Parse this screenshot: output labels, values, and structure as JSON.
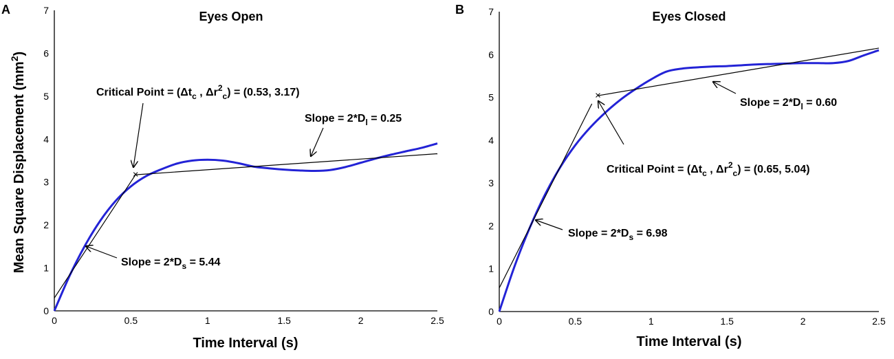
{
  "chart_data": [
    {
      "type": "line",
      "panel_letter": "A",
      "title": "Eyes Open",
      "xlabel": "Time Interval (s)",
      "ylabel": "Mean Square Displacement (mm",
      "ylabel_sup": "2",
      "ylabel_end": ")",
      "xlim": [
        0,
        2.5
      ],
      "ylim": [
        0,
        7
      ],
      "x_ticks": [
        "0",
        "0.5",
        "1",
        "1.5",
        "2",
        "2.5"
      ],
      "y_ticks": [
        "0",
        "1",
        "2",
        "3",
        "4",
        "5",
        "6",
        "7"
      ],
      "series": [
        {
          "name": "MSD",
          "color": "#2323d6",
          "x": [
            0,
            0.1,
            0.2,
            0.3,
            0.4,
            0.5,
            0.6,
            0.7,
            0.8,
            0.9,
            1.0,
            1.1,
            1.2,
            1.3,
            1.4,
            1.5,
            1.6,
            1.7,
            1.8,
            1.9,
            2.0,
            2.1,
            2.2,
            2.3,
            2.4,
            2.5
          ],
          "y": [
            0,
            0.82,
            1.52,
            2.1,
            2.56,
            2.9,
            3.14,
            3.3,
            3.43,
            3.5,
            3.52,
            3.5,
            3.44,
            3.36,
            3.32,
            3.29,
            3.27,
            3.26,
            3.28,
            3.35,
            3.45,
            3.55,
            3.64,
            3.72,
            3.8,
            3.9
          ]
        }
      ],
      "fit_lines": [
        {
          "name": "short-term fit",
          "x": [
            0,
            0.53
          ],
          "y": [
            0.3,
            3.17
          ]
        },
        {
          "name": "long-term fit",
          "x": [
            0.53,
            2.5
          ],
          "y": [
            3.17,
            3.66
          ]
        }
      ],
      "critical_point": {
        "x": 0.53,
        "y": 3.17,
        "color": "#e07070"
      },
      "annotations": {
        "critical": {
          "prefix": "Critical Point = (Δt",
          "sub1": "c",
          "mid": " , Δr",
          "sup": "2",
          "sub2": "c",
          "suffix": ") = (0.53, 3.17)"
        },
        "slope_long": {
          "prefix": "Slope = 2*D",
          "sub": "l",
          "suffix": " = 0.25"
        },
        "slope_short": {
          "prefix": "Slope = 2*D",
          "sub": "s",
          "suffix": " = 5.44"
        }
      }
    },
    {
      "type": "line",
      "panel_letter": "B",
      "title": "Eyes Closed",
      "xlabel": "Time Interval (s)",
      "xlim": [
        0,
        2.5
      ],
      "ylim": [
        0,
        7
      ],
      "x_ticks": [
        "0",
        "0.5",
        "1",
        "1.5",
        "2",
        "2.5"
      ],
      "y_ticks": [
        "0",
        "1",
        "2",
        "3",
        "4",
        "5",
        "6",
        "7"
      ],
      "series": [
        {
          "name": "MSD",
          "color": "#2323d6",
          "x": [
            0,
            0.1,
            0.2,
            0.3,
            0.4,
            0.5,
            0.6,
            0.7,
            0.8,
            0.9,
            1.0,
            1.1,
            1.2,
            1.3,
            1.4,
            1.5,
            1.6,
            1.7,
            1.8,
            1.9,
            2.0,
            2.1,
            2.2,
            2.3,
            2.4,
            2.5
          ],
          "y": [
            0,
            1.05,
            1.95,
            2.72,
            3.36,
            3.88,
            4.3,
            4.65,
            4.95,
            5.2,
            5.42,
            5.6,
            5.67,
            5.7,
            5.72,
            5.73,
            5.75,
            5.77,
            5.78,
            5.79,
            5.8,
            5.8,
            5.8,
            5.85,
            5.98,
            6.1
          ]
        }
      ],
      "fit_lines": [
        {
          "name": "short-term fit",
          "x": [
            0,
            0.61
          ],
          "y": [
            0.55,
            4.85
          ]
        },
        {
          "name": "long-term fit",
          "x": [
            0.65,
            2.5
          ],
          "y": [
            5.04,
            6.15
          ]
        }
      ],
      "critical_point": {
        "x": 0.65,
        "y": 5.04,
        "color": "#e07070"
      },
      "annotations": {
        "slope_long": {
          "prefix": "Slope = 2*D",
          "sub": "l",
          "suffix": " = 0.60"
        },
        "critical": {
          "prefix": "Critical Point = (Δt",
          "sub1": "c",
          "mid": " , Δr",
          "sup": "2",
          "sub2": "c",
          "suffix": ") = (0.65, 5.04)"
        },
        "slope_short": {
          "prefix": "Slope = 2*D",
          "sub": "s",
          "suffix": " = 6.98"
        }
      }
    }
  ]
}
